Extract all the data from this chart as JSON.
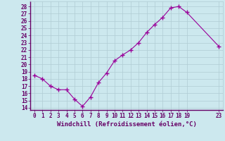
{
  "x_data": [
    0,
    1,
    2,
    3,
    4,
    5,
    6,
    7,
    8,
    9,
    10,
    11,
    12,
    13,
    14,
    15,
    16,
    17,
    18,
    19,
    23
  ],
  "y_data": [
    18.5,
    18.0,
    17.0,
    16.5,
    16.5,
    15.2,
    14.2,
    15.5,
    17.5,
    18.8,
    20.5,
    21.3,
    22.0,
    23.0,
    24.4,
    25.5,
    26.5,
    27.8,
    28.0,
    27.2,
    22.5
  ],
  "x_ticks": [
    0,
    1,
    2,
    3,
    4,
    5,
    6,
    7,
    8,
    9,
    10,
    11,
    12,
    13,
    14,
    15,
    16,
    17,
    18,
    19,
    23
  ],
  "y_ticks": [
    14,
    15,
    16,
    17,
    18,
    19,
    20,
    21,
    22,
    23,
    24,
    25,
    26,
    27,
    28
  ],
  "ylim": [
    13.7,
    28.7
  ],
  "xlim": [
    -0.5,
    23.5
  ],
  "xlabel": "Windchill (Refroidissement éolien,°C)",
  "line_color": "#990099",
  "marker": "+",
  "marker_size": 4,
  "bg_color": "#cce8ee",
  "grid_color": "#b0ccd4",
  "label_color": "#660066",
  "tick_color": "#660066",
  "xlabel_fontsize": 6.5,
  "tick_fontsize": 5.5
}
